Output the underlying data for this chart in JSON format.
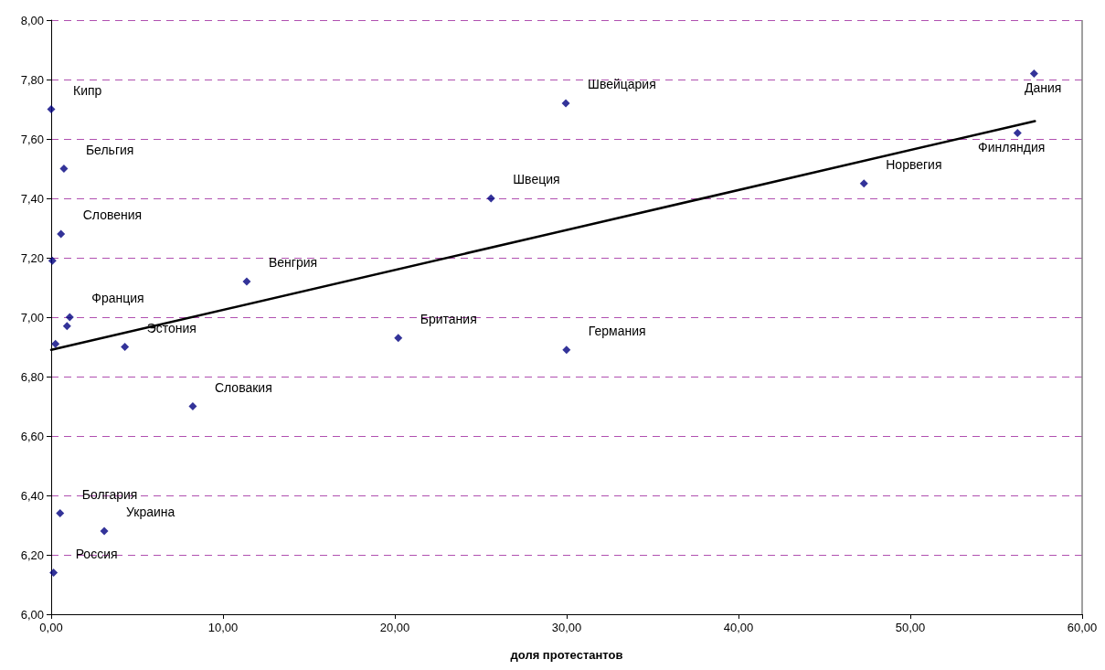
{
  "chart_data": {
    "type": "scatter",
    "xlabel": "доля протестантов",
    "xlim": [
      0,
      60
    ],
    "xticks": [
      {
        "value": 0,
        "label": "0,00"
      },
      {
        "value": 10,
        "label": "10,00"
      },
      {
        "value": 20,
        "label": "20,00"
      },
      {
        "value": 30,
        "label": "30,00"
      },
      {
        "value": 40,
        "label": "40,00"
      },
      {
        "value": 50,
        "label": "50,00"
      },
      {
        "value": 60,
        "label": "60,00"
      }
    ],
    "ylim": [
      6,
      8
    ],
    "yticks": [
      {
        "value": 6,
        "label": "6,00"
      },
      {
        "value": 6.2,
        "label": "6,20"
      },
      {
        "value": 6.4,
        "label": "6,40"
      },
      {
        "value": 6.6,
        "label": "6,60"
      },
      {
        "value": 6.8,
        "label": "6,80"
      },
      {
        "value": 7,
        "label": "7,00"
      },
      {
        "value": 7.2,
        "label": "7,20"
      },
      {
        "value": 7.4,
        "label": "7,40"
      },
      {
        "value": 7.6,
        "label": "7,60"
      },
      {
        "value": 7.8,
        "label": "7,80"
      },
      {
        "value": 8,
        "label": "8,00"
      }
    ],
    "grid": "y",
    "marker": "diamond",
    "series": [
      {
        "color": "#000080",
        "x": [
          0.0,
          0.74,
          0.57,
          0.07,
          1.08,
          0.92,
          0.25,
          4.29,
          8.24,
          0.52,
          3.09,
          0.14,
          11.38,
          29.95,
          25.6,
          20.2,
          29.99,
          57.2,
          56.24,
          47.3
        ],
        "values": [
          7.7,
          7.5,
          7.28,
          7.19,
          7.0,
          6.97,
          6.91,
          6.9,
          6.7,
          6.34,
          6.28,
          6.14,
          7.12,
          7.72,
          7.4,
          6.93,
          6.89,
          7.82,
          7.62,
          7.45
        ]
      },
      {
        "type": "line",
        "color": "#000000",
        "marker": "none",
        "line_style": "solid",
        "x": [
          0,
          57.25
        ],
        "values": [
          6.89,
          7.66
        ]
      }
    ],
    "annotations": [
      {
        "text": "Кипр",
        "x": 0.0,
        "y": 7.7
      },
      {
        "text": "Бельгия",
        "x": 0.74,
        "y": 7.5
      },
      {
        "text": "Словения",
        "x": 0.57,
        "y": 7.28
      },
      {
        "text": "Франция",
        "x": 1.08,
        "y": 7.0
      },
      {
        "text": "Эстония",
        "x": 4.29,
        "y": 6.9
      },
      {
        "text": "Словакия",
        "x": 8.24,
        "y": 6.7
      },
      {
        "text": "Болгария",
        "x": 0.52,
        "y": 6.34
      },
      {
        "text": "Украина",
        "x": 3.09,
        "y": 6.28
      },
      {
        "text": "Россия",
        "x": 0.14,
        "y": 6.14
      },
      {
        "text": "Венгрия",
        "x": 11.38,
        "y": 7.12
      },
      {
        "text": "Швейцария",
        "x": 29.95,
        "y": 7.72
      },
      {
        "text": "Швеция",
        "x": 25.6,
        "y": 7.4
      },
      {
        "text": "Британия",
        "x": 20.2,
        "y": 6.93
      },
      {
        "text": "Германия",
        "x": 29.99,
        "y": 6.89
      },
      {
        "text": "Дания",
        "x": 57.2,
        "y": 7.82
      },
      {
        "text": "Финляндия",
        "x": 56.24,
        "y": 7.62
      },
      {
        "text": "Норвегия",
        "x": 47.3,
        "y": 7.45
      }
    ]
  }
}
